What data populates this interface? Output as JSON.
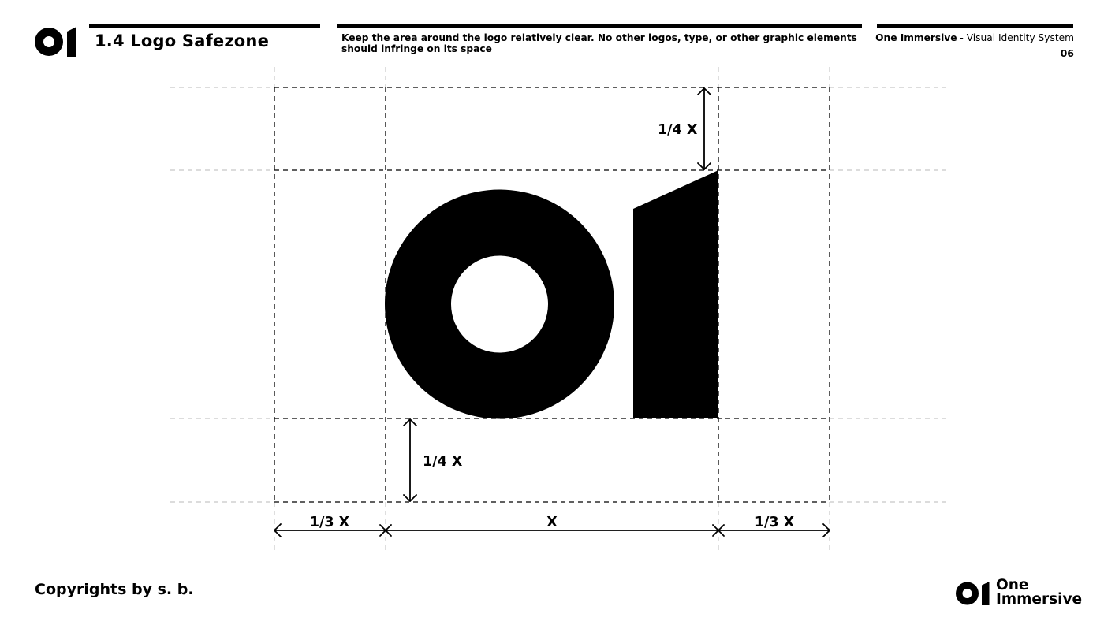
{
  "header": {
    "section_title": "1.4 Logo Safezone",
    "description": "Keep the area around the logo relatively clear. No other logos, type, or other graphic elements should infringe on its space",
    "brand_name": "One Immersive",
    "brand_suffix": " - Visual Identity System",
    "page_number": "06"
  },
  "diagram": {
    "labels": {
      "top_margin": "1/4 X",
      "bottom_margin": "1/4 X",
      "left_margin": "1/3 X",
      "logo_width": "X",
      "right_margin": "1/3 X"
    }
  },
  "footer": {
    "copyright": "Copyrights by s. b.",
    "wordmark_line1": "One",
    "wordmark_line2": "Immersive"
  },
  "colors": {
    "ink": "#000000",
    "background": "#ffffff",
    "guide_dashed": "#000000",
    "guide_faint": "#c8c8c8"
  },
  "icons": {
    "header_logo": "o1-logo-mark",
    "footer_logo": "o1-logo-mark"
  }
}
